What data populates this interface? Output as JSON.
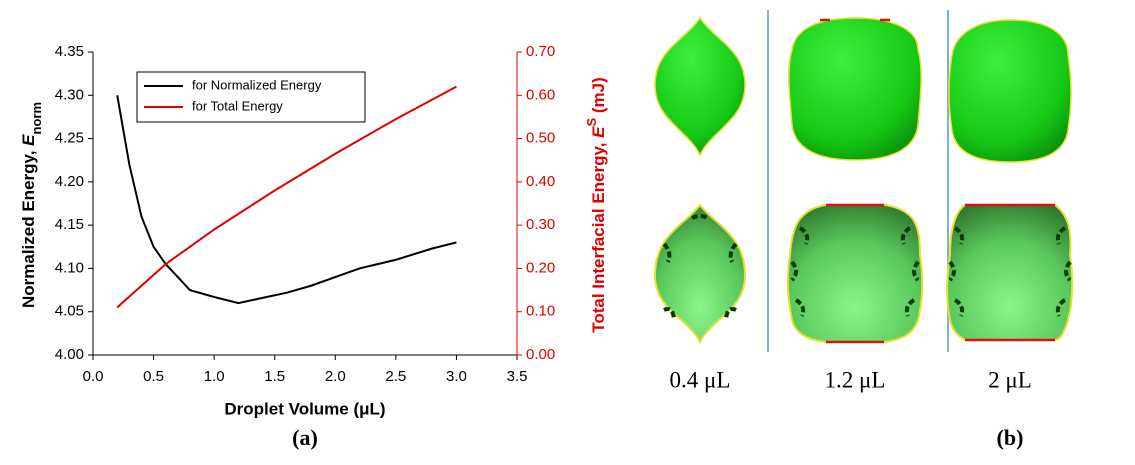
{
  "chart_data": {
    "type": "line",
    "x_label": "Droplet Volume (μL)",
    "y_label": {
      "text": "Normalized Energy, ",
      "symbol": "E",
      "sub": "norm"
    },
    "y2_label": {
      "text": "Total Interfacial Energy, ",
      "symbol": "E",
      "sup": "S",
      "unit": " (mJ)"
    },
    "caption": "(a)",
    "xlim": [
      0,
      3.5
    ],
    "xticks": [
      {
        "value": 0,
        "label": "0.0"
      },
      {
        "value": 0.5,
        "label": "0.5"
      },
      {
        "value": 1,
        "label": "1.0"
      },
      {
        "value": 1.5,
        "label": "1.5"
      },
      {
        "value": 2,
        "label": "2.0"
      },
      {
        "value": 2.5,
        "label": "2.5"
      },
      {
        "value": 3,
        "label": "3.0"
      },
      {
        "value": 3.5,
        "label": "3.5"
      }
    ],
    "ylim": [
      4.0,
      4.35
    ],
    "yticks": [
      {
        "value": 4.0,
        "label": "4.00"
      },
      {
        "value": 4.05,
        "label": "4.05"
      },
      {
        "value": 4.1,
        "label": "4.10"
      },
      {
        "value": 4.15,
        "label": "4.15"
      },
      {
        "value": 4.2,
        "label": "4.20"
      },
      {
        "value": 4.25,
        "label": "4.25"
      },
      {
        "value": 4.3,
        "label": "4.30"
      },
      {
        "value": 4.35,
        "label": "4.35"
      }
    ],
    "y2lim": [
      0,
      0.7
    ],
    "y2ticks": [
      {
        "value": 0,
        "label": "0.00"
      },
      {
        "value": 0.1,
        "label": "0.10"
      },
      {
        "value": 0.2,
        "label": "0.20"
      },
      {
        "value": 0.3,
        "label": "0.30"
      },
      {
        "value": 0.4,
        "label": "0.40"
      },
      {
        "value": 0.5,
        "label": "0.50"
      },
      {
        "value": 0.6,
        "label": "0.60"
      },
      {
        "value": 0.7,
        "label": "0.70"
      }
    ],
    "y2_color": "#e00000",
    "legend": "upper left",
    "series": [
      {
        "name": "for Normalized Energy",
        "color": "#000000",
        "x": [
          0.2,
          0.3,
          0.4,
          0.5,
          0.6,
          0.7,
          0.8,
          1.0,
          1.2,
          1.4,
          1.6,
          1.8,
          2.0,
          2.2,
          2.5,
          2.8,
          3.0
        ],
        "values": [
          4.3,
          4.22,
          4.16,
          4.125,
          4.105,
          4.09,
          4.075,
          4.067,
          4.06,
          4.066,
          4.072,
          4.08,
          4.09,
          4.1,
          4.11,
          4.123,
          4.13
        ]
      },
      {
        "name": "for Total Energy",
        "color": "#e00000",
        "axis": "y2",
        "x": [
          0.2,
          0.4,
          0.6,
          0.8,
          1.0,
          1.5,
          2.0,
          2.5,
          3.0
        ],
        "values": [
          0.11,
          0.16,
          0.21,
          0.25,
          0.29,
          0.38,
          0.465,
          0.545,
          0.62
        ]
      }
    ]
  },
  "panel_b": {
    "caption": "(b)",
    "labels": [
      "0.4 μL",
      "1.2 μL",
      "2 μL"
    ]
  }
}
